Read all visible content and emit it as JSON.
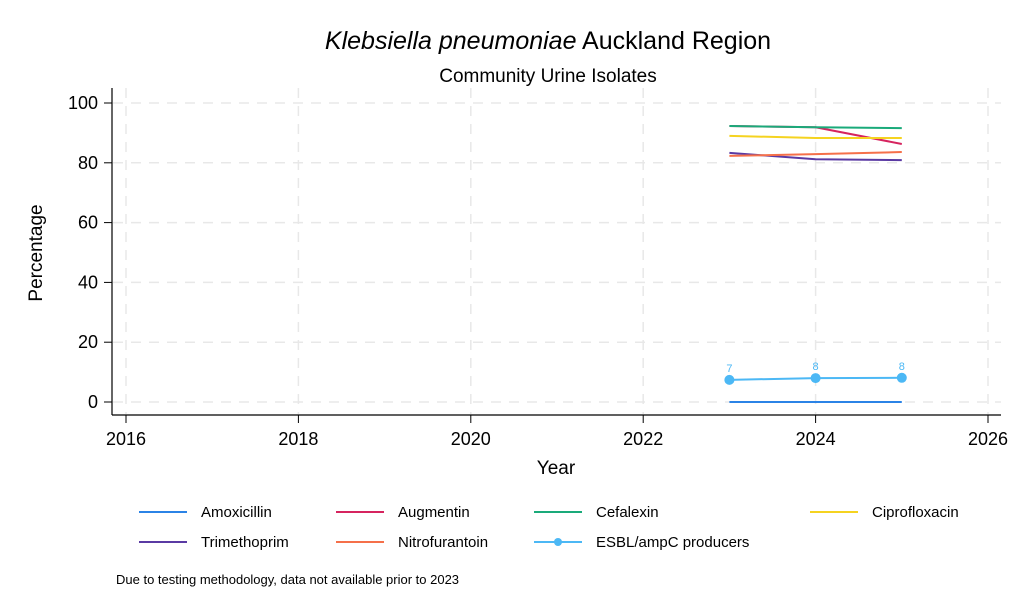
{
  "chart_data": {
    "type": "line",
    "title_italic": "Klebsiella pneumoniae",
    "title_rest": " Auckland Region",
    "subtitle": "Community Urine Isolates",
    "xlabel": "Year",
    "ylabel": "Percentage",
    "xlim": [
      2016,
      2026
    ],
    "ylim": [
      0,
      100
    ],
    "xticks": [
      2016,
      2018,
      2020,
      2022,
      2024,
      2026
    ],
    "yticks": [
      0,
      20,
      40,
      60,
      80,
      100
    ],
    "grid": true,
    "legend_position": "bottom",
    "x": [
      2023,
      2024,
      2025
    ],
    "series": [
      {
        "name": "Amoxicillin",
        "color": "#2b83e6",
        "values": [
          0,
          0,
          0
        ],
        "markers": false
      },
      {
        "name": "Augmentin",
        "color": "#d6245f",
        "values": [
          92.3,
          91.9,
          86.3
        ],
        "markers": false
      },
      {
        "name": "Cefalexin",
        "color": "#1aaa7a",
        "values": [
          92.3,
          91.9,
          91.6
        ],
        "markers": false
      },
      {
        "name": "Ciprofloxacin",
        "color": "#f5d320",
        "values": [
          89.0,
          88.3,
          88.3
        ],
        "markers": false
      },
      {
        "name": "Trimethoprim",
        "color": "#5a3aa3",
        "values": [
          83.3,
          81.2,
          80.9
        ],
        "markers": false
      },
      {
        "name": "Nitrofurantoin",
        "color": "#f5704a",
        "values": [
          82.3,
          82.9,
          83.6
        ],
        "markers": false
      },
      {
        "name": "ESBL/ampC producers",
        "color": "#4cb8f5",
        "values": [
          7.4,
          8.0,
          8.1
        ],
        "markers": true,
        "data_labels": [
          "7",
          "8",
          "8"
        ]
      }
    ],
    "note": "Due to testing methodology, data not available prior to 2023"
  }
}
